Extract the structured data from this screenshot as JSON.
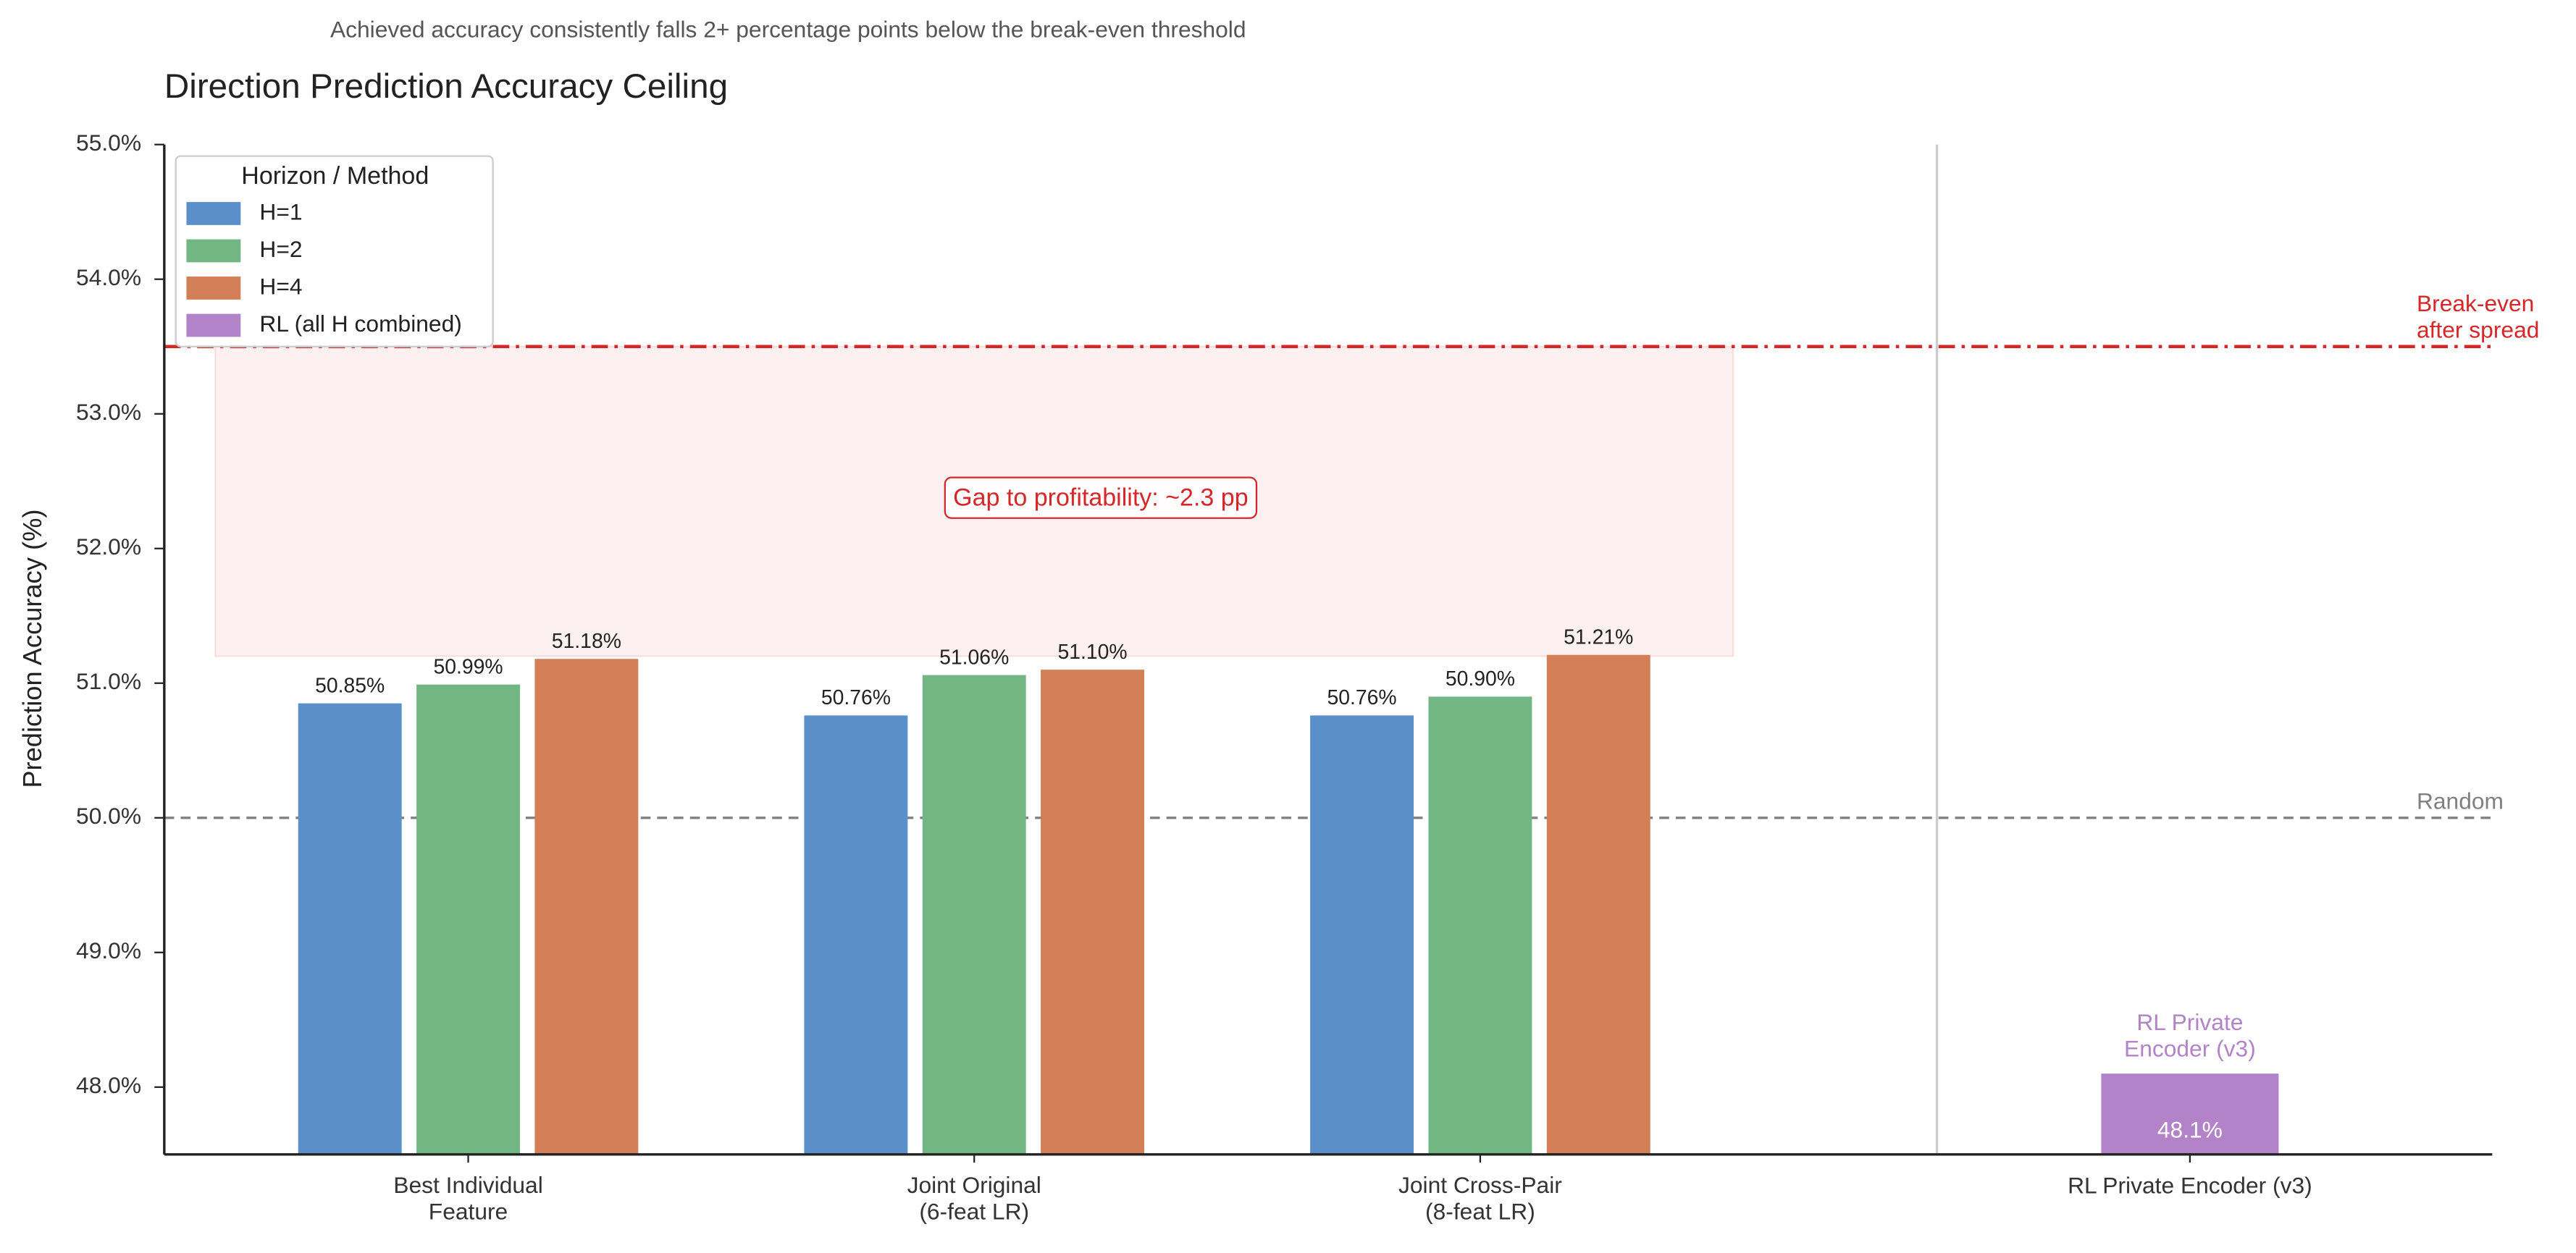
{
  "chart_data": {
    "type": "bar",
    "subtitle": "Achieved accuracy consistently falls 2+ percentage points below the break-even threshold",
    "title": "Direction Prediction Accuracy Ceiling",
    "y_label": "Prediction Accuracy (%)",
    "categories": [
      "Best Individual\nFeature",
      "Joint Original\n(6-feat LR)",
      "Joint Cross-Pair\n(8-feat LR)",
      "RL Private Encoder (v3)"
    ],
    "series": [
      {
        "name": "H=1",
        "color": "#5b8fc9",
        "values": [
          50.85,
          50.76,
          50.76,
          null
        ],
        "value_labels": [
          "50.85%",
          "50.76%",
          "50.76%",
          null
        ]
      },
      {
        "name": "H=2",
        "color": "#72b783",
        "values": [
          50.99,
          51.06,
          50.9,
          null
        ],
        "value_labels": [
          "50.99%",
          "51.06%",
          "50.90%",
          null
        ]
      },
      {
        "name": "H=4",
        "color": "#d27e57",
        "values": [
          51.18,
          51.1,
          51.21,
          null
        ],
        "value_labels": [
          "51.18%",
          "51.10%",
          "51.21%",
          null
        ]
      },
      {
        "name": "RL (all H combined)",
        "color": "#b283c8",
        "values": [
          null,
          null,
          null,
          48.1
        ],
        "value_labels": [
          null,
          null,
          null,
          "48.1%"
        ]
      }
    ],
    "legend_title": "Horizon / Method",
    "legend_position": "upper left",
    "ylim": [
      47.5,
      55.0
    ],
    "yticks": [
      {
        "value": 48,
        "label": "48.0%"
      },
      {
        "value": 49,
        "label": "49.0%"
      },
      {
        "value": 50,
        "label": "50.0%"
      },
      {
        "value": 51,
        "label": "51.0%"
      },
      {
        "value": 52,
        "label": "52.0%"
      },
      {
        "value": 53,
        "label": "53.0%"
      },
      {
        "value": 54,
        "label": "54.0%"
      },
      {
        "value": 55,
        "label": "55.0%"
      }
    ],
    "reference_lines": [
      {
        "value": 53.5,
        "label": "Break-even\nafter spread",
        "color": "#d62728",
        "style": "dashdot"
      },
      {
        "value": 50,
        "label": "Random",
        "color": "#808080",
        "style": "dashed"
      }
    ],
    "gap_region": {
      "from": 51.2,
      "to": 53.5,
      "label": "Gap to profitability: ~2.3 pp",
      "color": "#d62728"
    },
    "rl_annotation": "RL Private\nEncoder (v3)"
  }
}
